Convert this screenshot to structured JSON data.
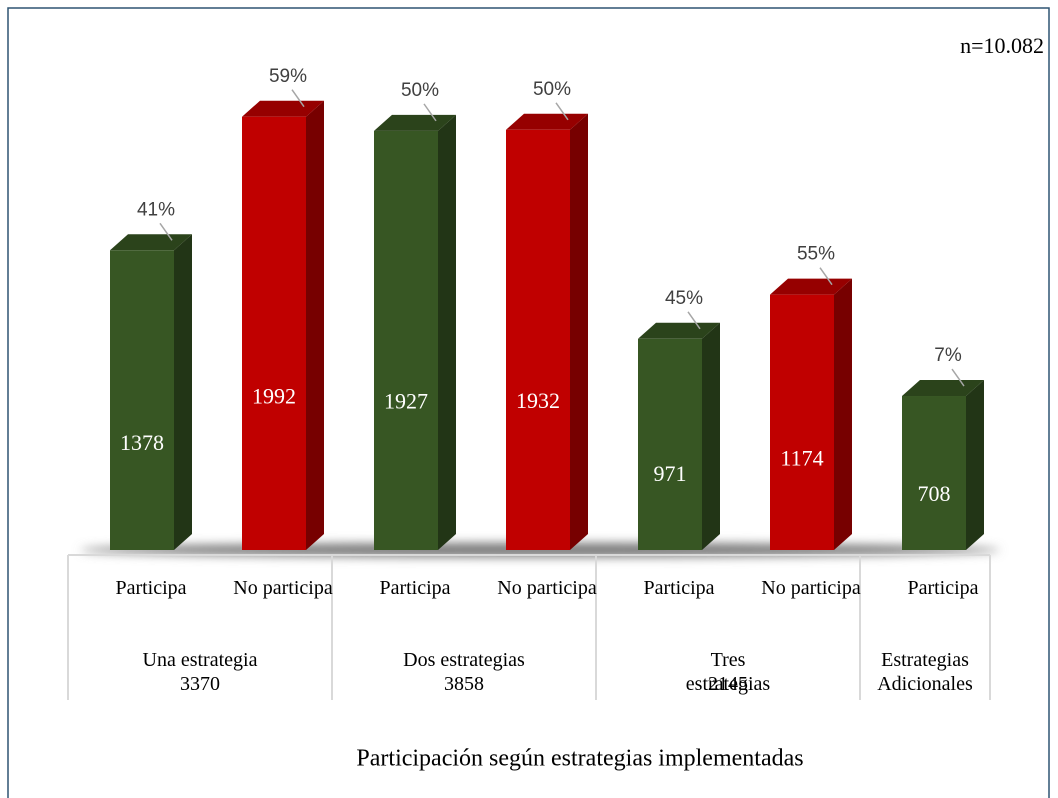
{
  "chart_data": {
    "type": "bar3d",
    "title": "Participación según estrategias implementadas",
    "annotation": "n=10.082",
    "categories": [
      "Participa",
      "No participa",
      "Participa",
      "No participa",
      "Participa",
      "No participa",
      "Participa"
    ],
    "values": [
      1378,
      1992,
      1927,
      1932,
      971,
      1174,
      708
    ],
    "percentages": [
      41,
      59,
      50,
      50,
      45,
      55,
      7
    ],
    "percentage_labels": [
      "41%",
      "59%",
      "50%",
      "50%",
      "45%",
      "55%",
      "7%"
    ],
    "colors": [
      "#375623",
      "#c00000",
      "#375623",
      "#c00000",
      "#375623",
      "#c00000",
      "#375623"
    ],
    "groups": [
      {
        "name": "Una estrategia",
        "total": 3370,
        "size": 2
      },
      {
        "name": "Dos estrategias",
        "total": 3858,
        "size": 2
      },
      {
        "name": "Tres estrategias",
        "total": 2145,
        "size": 2
      },
      {
        "name": "Estrategias Adicionales",
        "size": 1
      }
    ],
    "ylim": [
      0,
      2400
    ]
  }
}
